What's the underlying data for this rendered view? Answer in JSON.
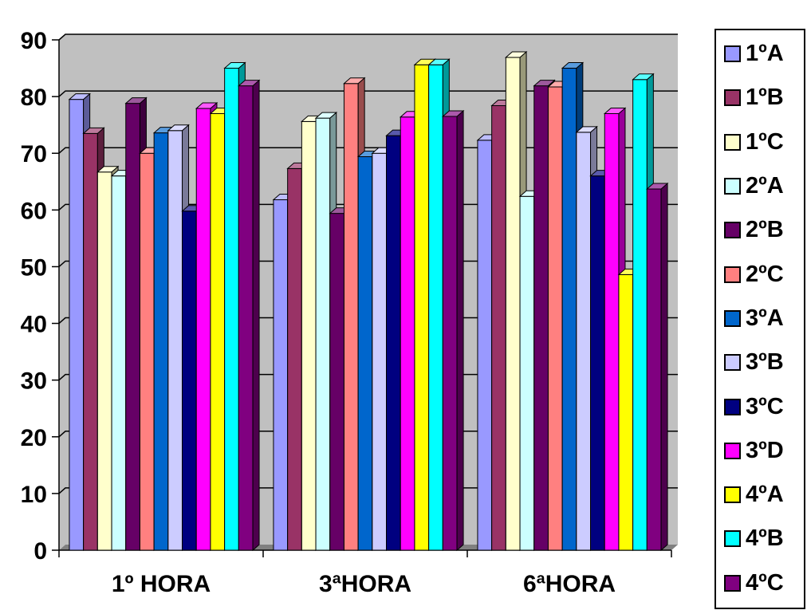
{
  "chart_data": {
    "type": "bar",
    "style": "3d-clustered-column",
    "categories": [
      "1º HORA",
      "3ªHORA",
      "6ªHORA"
    ],
    "ylim": [
      0,
      90
    ],
    "yticks": [
      0,
      10,
      20,
      30,
      40,
      50,
      60,
      70,
      80,
      90
    ],
    "grid": true,
    "legend_position": "right",
    "plot_background": "#C0C0C0",
    "series": [
      {
        "name": "1ºA",
        "color": "#9999FF",
        "values": [
          79.5,
          61.8,
          72.3
        ]
      },
      {
        "name": "1ºB",
        "color": "#993366",
        "values": [
          73.5,
          67.3,
          78.4
        ]
      },
      {
        "name": "1ºC",
        "color": "#FFFFCC",
        "values": [
          66.7,
          75.6,
          86.9
        ]
      },
      {
        "name": "2ºA",
        "color": "#CCFFFF",
        "values": [
          66.0,
          76.2,
          62.4
        ]
      },
      {
        "name": "2ºB",
        "color": "#660066",
        "values": [
          78.8,
          59.4,
          81.9
        ]
      },
      {
        "name": "2ºC",
        "color": "#FF8080",
        "values": [
          70.0,
          82.3,
          81.7
        ]
      },
      {
        "name": "3ºA",
        "color": "#0066CC",
        "values": [
          73.6,
          69.4,
          85.0
        ]
      },
      {
        "name": "3ºB",
        "color": "#CCCCFF",
        "values": [
          74.0,
          70.0,
          73.7
        ]
      },
      {
        "name": "3ºC",
        "color": "#000080",
        "values": [
          59.8,
          73.1,
          66.0
        ]
      },
      {
        "name": "3ºD",
        "color": "#FF00FF",
        "values": [
          77.9,
          76.4,
          77.0
        ]
      },
      {
        "name": "4ºA",
        "color": "#FFFF00",
        "values": [
          77.0,
          85.6,
          48.6
        ]
      },
      {
        "name": "4ºB",
        "color": "#00FFFF",
        "values": [
          85.0,
          85.6,
          83.0
        ]
      },
      {
        "name": "4ºC",
        "color": "#800080",
        "values": [
          81.9,
          76.5,
          63.7
        ]
      }
    ]
  }
}
